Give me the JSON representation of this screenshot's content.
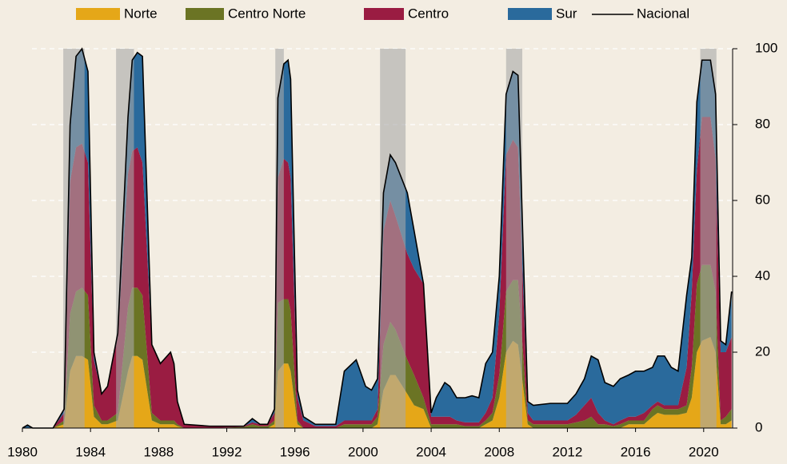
{
  "chart_data": {
    "type": "stacked_area",
    "x": [
      1980.0,
      1980.3,
      1980.6,
      1981.8,
      1982.45,
      1982.8,
      1983.15,
      1983.5,
      1983.85,
      1984.2,
      1984.65,
      1985.0,
      1985.6,
      1986.2,
      1986.45,
      1986.75,
      1987.05,
      1987.6,
      1988.1,
      1988.7,
      1988.9,
      1989.1,
      1989.5,
      1991.0,
      1993.0,
      1993.5,
      1993.95,
      1994.4,
      1994.8,
      1995.0,
      1995.35,
      1995.6,
      1995.75,
      1996.15,
      1996.5,
      1997.2,
      1998.4,
      1998.9,
      1999.6,
      2000.15,
      2000.5,
      2000.85,
      2001.2,
      2001.6,
      2001.9,
      2002.6,
      2003.0,
      2003.55,
      2004.0,
      2004.3,
      2004.8,
      2005.1,
      2005.5,
      2006.0,
      2006.4,
      2006.8,
      2007.2,
      2007.6,
      2008.0,
      2008.4,
      2008.8,
      2009.1,
      2009.67,
      2010.0,
      2011.0,
      2012.0,
      2012.5,
      2013.0,
      2013.4,
      2013.8,
      2014.2,
      2014.7,
      2015.1,
      2015.6,
      2016.0,
      2016.5,
      2017.0,
      2017.3,
      2017.7,
      2018.1,
      2018.5,
      2019.0,
      2019.3,
      2019.6,
      2019.9,
      2020.4,
      2020.7,
      2021.0,
      2021.3,
      2021.64
    ],
    "series": [
      {
        "name": "Norte",
        "color": "#e5a718",
        "values": [
          0,
          0,
          0,
          0,
          1,
          15,
          19,
          19,
          18,
          3,
          1,
          1,
          2,
          15,
          19,
          19,
          18,
          2,
          1,
          1,
          1,
          0.5,
          0,
          0,
          0,
          0,
          0,
          0,
          1,
          15,
          17,
          17,
          15,
          1,
          0,
          0,
          0,
          0,
          0,
          0,
          0,
          1,
          10,
          14,
          14,
          9,
          6,
          5,
          0,
          0,
          0,
          0,
          0,
          0,
          0,
          0,
          1,
          2,
          8,
          20,
          23,
          22,
          1,
          0,
          0,
          0,
          0,
          0,
          0,
          0,
          0,
          0,
          0,
          1,
          1,
          1,
          3,
          4,
          3.5,
          3.5,
          3.5,
          4,
          8,
          20,
          23,
          24,
          20,
          1,
          1,
          2
        ]
      },
      {
        "name": "Centro Norte",
        "color": "#6b7424",
        "values": [
          0,
          0,
          0,
          0,
          1,
          15,
          17,
          18,
          17,
          3,
          1,
          1,
          2,
          17,
          18,
          18,
          17,
          2,
          1,
          1,
          1,
          0.5,
          0,
          0,
          0.3,
          1,
          0.5,
          0.5,
          1,
          18,
          17,
          17,
          16,
          1,
          0,
          0,
          0,
          1,
          1,
          1,
          1,
          2,
          12,
          14,
          12,
          9,
          8,
          3,
          1,
          1,
          1,
          1,
          1,
          0.5,
          0.5,
          0.5,
          1,
          2,
          6,
          16,
          16,
          17,
          1,
          1,
          1,
          1,
          1.5,
          2,
          3,
          1,
          1,
          0.5,
          1,
          1,
          1,
          1,
          2,
          2,
          1.5,
          1.5,
          1.5,
          2,
          8,
          18,
          20,
          19,
          16,
          1,
          2,
          3
        ]
      },
      {
        "name": "Centro",
        "color": "#9a1c42",
        "values": [
          0,
          0,
          0,
          0,
          2,
          35,
          38,
          38,
          35,
          12,
          7,
          9,
          20,
          35,
          36,
          37,
          35,
          18,
          15,
          18,
          15,
          6,
          1,
          0.5,
          0.2,
          0.5,
          0.5,
          0.5,
          2,
          33,
          37,
          36,
          35,
          6,
          2,
          0.5,
          0.5,
          1,
          1,
          1,
          1,
          2,
          30,
          32,
          30,
          28,
          28,
          30,
          2,
          2,
          2,
          2,
          1,
          1,
          1,
          1,
          2,
          4,
          16,
          36,
          37,
          35,
          2,
          1,
          1,
          1,
          2,
          4,
          5,
          3,
          1,
          0.5,
          1,
          1,
          1,
          2,
          1,
          1,
          1,
          1,
          1,
          10,
          20,
          30,
          39,
          39,
          35,
          18,
          17,
          19
        ]
      },
      {
        "name": "Sur",
        "color": "#2a6a9c",
        "values": [
          0,
          0.8,
          0,
          0,
          1,
          15,
          24,
          25,
          24,
          2,
          0,
          0,
          1,
          15,
          24,
          25,
          28,
          0,
          0,
          0,
          0,
          0,
          0,
          0,
          0,
          1,
          0,
          0,
          1,
          21,
          25,
          27,
          26,
          2,
          1,
          0.5,
          0.5,
          13,
          16,
          9,
          8,
          8,
          10,
          12,
          14,
          16,
          10,
          0,
          1,
          5,
          9,
          8,
          6,
          6.5,
          7,
          6.5,
          13,
          12,
          10,
          16,
          18,
          19,
          3,
          4,
          4.5,
          4.5,
          5.5,
          7,
          11,
          14,
          10,
          10,
          11,
          11,
          12,
          11,
          10,
          12,
          13,
          10,
          9,
          19,
          9,
          18,
          15,
          15,
          17,
          3,
          2,
          12
        ]
      }
    ],
    "line": {
      "name": "Nacional",
      "color": "#000000",
      "values": [
        0,
        0.8,
        0,
        0,
        5,
        80,
        98,
        100,
        94,
        20,
        9,
        11,
        25,
        82,
        97,
        99,
        98,
        22,
        17,
        20,
        17,
        7,
        1,
        0.5,
        0.5,
        2.5,
        1,
        1,
        5,
        87,
        96,
        97,
        92,
        10,
        3,
        1,
        1,
        15,
        18,
        11,
        10,
        13,
        62,
        72,
        70,
        62,
        52,
        38,
        4,
        8,
        12,
        11,
        8,
        8,
        8.5,
        8,
        17,
        20,
        40,
        88,
        94,
        93,
        7,
        6,
        6.5,
        6.5,
        9,
        13,
        19,
        18,
        12,
        11,
        13,
        14,
        15,
        15,
        16,
        19,
        19,
        16,
        15,
        35,
        45,
        86,
        97,
        97,
        88,
        23,
        22,
        36
      ]
    },
    "shaded_periods": [
      [
        1982.4,
        1983.65
      ],
      [
        1985.5,
        1986.55
      ],
      [
        1994.85,
        1995.35
      ],
      [
        2001.0,
        2002.5
      ],
      [
        2008.4,
        2009.35
      ],
      [
        2019.8,
        2020.75
      ]
    ],
    "xlim": [
      1980,
      2021.7
    ],
    "xticks": [
      1980,
      1984,
      1988,
      1992,
      1996,
      2000,
      2004,
      2008,
      2012,
      2016,
      2020
    ],
    "ylim": [
      0,
      100
    ],
    "yticks": [
      0,
      20,
      40,
      60,
      80,
      100
    ],
    "grid": true
  }
}
